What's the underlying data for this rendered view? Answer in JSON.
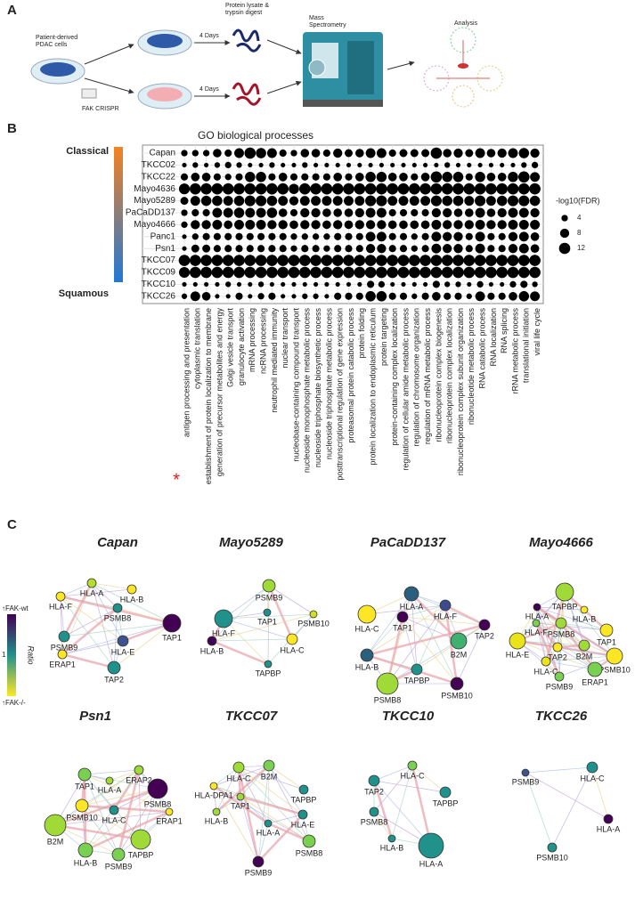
{
  "panel_a": {
    "label": "A",
    "source": [
      "Patient-derived",
      "PDAC cells"
    ],
    "days_top": "4 Days",
    "days_bottom": "4 Days",
    "crispr": "FAK CRISPR",
    "digest": [
      "Protein lysate &",
      "trypsin digest"
    ],
    "ms": [
      "Mass",
      "Spectrometry"
    ],
    "analysis": "Analysis"
  },
  "chart_data": {
    "type": "dot_matrix",
    "panel_label": "B",
    "title": "GO biological processes",
    "categories": [
      "antigen processing and presentation",
      "cytoplasmic translation",
      "establishment of protein localization to membrane",
      "generation of precursor metabolites and energy",
      "Golgi vesicle transport",
      "granulocyte activation",
      "mRNA processing",
      "ncRNA processing",
      "neutrophil mediated immunity",
      "nuclear transport",
      "nucleobase-containing compound transport",
      "nucleoside monophosphate metabolic process",
      "nucleoside triphosphate biosynthetic process",
      "nucleoside triphosphate metabolic process",
      "posttranscriptional regulation of gene expression",
      "proteasomal protein catabolic process",
      "protein folding",
      "protein localization to endoplasmic reticulum",
      "protein targeting",
      "protein-containing complex localization",
      "regulation of cellular amide metabolic process",
      "regulation of chromosome organization",
      "regulation of mRNA metabolic process",
      "ribonucleoprotein complex biogenesis",
      "ribonucleoprotein complex localization",
      "ribonucleoprotein complex subunit organization",
      "ribonucleotide metabolic process",
      "RNA catabolic process",
      "RNA localization",
      "RNA splicing",
      "rRNA metabolic process",
      "translational initiation",
      "viral life cycle"
    ],
    "rows": [
      "Capan",
      "TKCC02",
      "TKCC22",
      "Mayo4636",
      "Mayo5289",
      "PaCaDD137",
      "Mayo4666",
      "Panc1",
      "Psn1",
      "TKCC07",
      "TKCC09",
      "TKCC10",
      "TKCC26"
    ],
    "values": [
      [
        4,
        4,
        4,
        7,
        5,
        9,
        12,
        10,
        9,
        5,
        4,
        7,
        7,
        5,
        8,
        6,
        7,
        9,
        9,
        5,
        6,
        6,
        6,
        12,
        7,
        8,
        6,
        9,
        7,
        8,
        9,
        10,
        8
      ],
      [
        2,
        3,
        2,
        3,
        4,
        3,
        2,
        2,
        3,
        2,
        2,
        3,
        2,
        2,
        2,
        2,
        2,
        2,
        2,
        2,
        2,
        2,
        2,
        2,
        3,
        2,
        2,
        2,
        2,
        2,
        2,
        3,
        4
      ],
      [
        5,
        7,
        7,
        5,
        4,
        5,
        10,
        10,
        5,
        7,
        5,
        5,
        5,
        5,
        7,
        5,
        7,
        10,
        10,
        7,
        7,
        5,
        7,
        12,
        10,
        10,
        5,
        10,
        7,
        7,
        10,
        12,
        9
      ],
      [
        11,
        12,
        12,
        12,
        12,
        12,
        12,
        12,
        12,
        12,
        10,
        12,
        12,
        12,
        12,
        12,
        12,
        12,
        12,
        12,
        12,
        12,
        12,
        12,
        12,
        12,
        12,
        12,
        12,
        12,
        12,
        12,
        12
      ],
      [
        6,
        9,
        10,
        10,
        9,
        10,
        11,
        11,
        10,
        9,
        8,
        9,
        9,
        9,
        9,
        9,
        9,
        11,
        11,
        9,
        9,
        9,
        9,
        11,
        10,
        10,
        9,
        11,
        9,
        10,
        11,
        11,
        10
      ],
      [
        4,
        5,
        5,
        9,
        9,
        10,
        9,
        9,
        10,
        7,
        5,
        8,
        8,
        7,
        7,
        7,
        8,
        9,
        9,
        5,
        5,
        5,
        5,
        8,
        8,
        7,
        7,
        9,
        7,
        8,
        9,
        9,
        8
      ],
      [
        4,
        8,
        8,
        9,
        7,
        9,
        9,
        9,
        8,
        8,
        7,
        8,
        8,
        7,
        8,
        7,
        8,
        8,
        8,
        7,
        7,
        7,
        7,
        9,
        8,
        8,
        8,
        9,
        8,
        8,
        9,
        9,
        9
      ],
      [
        2,
        4,
        5,
        5,
        5,
        5,
        5,
        5,
        5,
        5,
        4,
        4,
        4,
        4,
        5,
        5,
        5,
        9,
        9,
        5,
        5,
        4,
        5,
        9,
        8,
        8,
        5,
        9,
        5,
        5,
        8,
        9,
        7
      ],
      [
        2,
        6,
        6,
        5,
        5,
        5,
        5,
        5,
        5,
        5,
        4,
        5,
        5,
        4,
        5,
        5,
        5,
        8,
        8,
        5,
        5,
        4,
        5,
        9,
        8,
        8,
        5,
        9,
        5,
        5,
        8,
        9,
        7
      ],
      [
        12,
        12,
        12,
        12,
        12,
        12,
        12,
        12,
        12,
        12,
        12,
        12,
        12,
        12,
        12,
        12,
        12,
        12,
        12,
        12,
        12,
        12,
        12,
        12,
        12,
        12,
        12,
        12,
        12,
        12,
        12,
        12,
        12
      ],
      [
        11,
        12,
        12,
        12,
        12,
        12,
        12,
        12,
        12,
        12,
        12,
        12,
        12,
        12,
        12,
        12,
        12,
        12,
        12,
        12,
        12,
        12,
        12,
        12,
        12,
        12,
        12,
        12,
        12,
        12,
        12,
        12,
        12
      ],
      [
        2,
        2,
        2,
        2,
        3,
        2,
        2,
        3,
        2,
        2,
        2,
        2,
        2,
        2,
        2,
        2,
        2,
        5,
        4,
        2,
        2,
        2,
        2,
        5,
        3,
        3,
        2,
        4,
        2,
        2,
        4,
        5,
        3
      ],
      [
        3,
        9,
        7,
        2,
        2,
        5,
        2,
        4,
        5,
        2,
        2,
        3,
        3,
        2,
        5,
        5,
        5,
        10,
        10,
        5,
        5,
        3,
        5,
        7,
        5,
        5,
        3,
        9,
        5,
        5,
        7,
        10,
        9
      ]
    ],
    "color": "#000000",
    "marker": "*",
    "marker_color": "#e41a1c",
    "size_legend": {
      "title": "-log10(FDR)",
      "values": [
        4,
        8,
        12
      ]
    },
    "gradient": {
      "top": "Classical",
      "bottom": "Squamous",
      "colors": [
        "#f5821f",
        "#1f78d6"
      ]
    }
  },
  "panel_c": {
    "label": "C",
    "colorbar": {
      "title": "Ratio",
      "top": "↑FAK-wt",
      "mid": "1",
      "bottom": "↑FAK-/-",
      "colors": [
        "#440154",
        "#21918c",
        "#fde725"
      ]
    },
    "networks": [
      {
        "title": "Capan",
        "nodes": [
          {
            "label": "HLA-A",
            "color": "#b5de2b"
          },
          {
            "label": "HLA-F",
            "color": "#fde725"
          },
          {
            "label": "HLA-B",
            "color": "#fde725"
          },
          {
            "label": "PSMB8",
            "color": "#21918c"
          },
          {
            "label": "TAP1",
            "color": "#440154"
          },
          {
            "label": "PSMB9",
            "color": "#21918c"
          },
          {
            "label": "HLA-E",
            "color": "#3b528b"
          },
          {
            "label": "ERAP1",
            "color": "#fde725"
          },
          {
            "label": "TAP2",
            "color": "#21918c"
          }
        ]
      },
      {
        "title": "Mayo5289",
        "nodes": [
          {
            "label": "PSMB9",
            "color": "#a0da39"
          },
          {
            "label": "HLA-F",
            "color": "#21918c"
          },
          {
            "label": "TAP1",
            "color": "#21918c"
          },
          {
            "label": "PSMB10",
            "color": "#d0e11c"
          },
          {
            "label": "HLA-B",
            "color": "#440154"
          },
          {
            "label": "HLA-C",
            "color": "#fde725"
          },
          {
            "label": "TAPBP",
            "color": "#21918c"
          }
        ]
      },
      {
        "title": "PaCaDD137",
        "nodes": [
          {
            "label": "HLA-A",
            "color": "#2c5f7e"
          },
          {
            "label": "HLA-F",
            "color": "#3b4b8b"
          },
          {
            "label": "HLA-C",
            "color": "#fde725"
          },
          {
            "label": "TAP1",
            "color": "#440154"
          },
          {
            "label": "TAP2",
            "color": "#440154"
          },
          {
            "label": "B2M",
            "color": "#3fb070"
          },
          {
            "label": "HLA-B",
            "color": "#2c5f7e"
          },
          {
            "label": "PSMB8",
            "color": "#a0da39"
          },
          {
            "label": "TAPBP",
            "color": "#21918c"
          },
          {
            "label": "PSMB10",
            "color": "#440154"
          }
        ]
      },
      {
        "title": "Mayo4666",
        "nodes": [
          {
            "label": "TAPBP",
            "color": "#a0da39"
          },
          {
            "label": "HLA-A",
            "color": "#440154"
          },
          {
            "label": "HLA-B",
            "color": "#fde725"
          },
          {
            "label": "HLA-F",
            "color": "#7ad151"
          },
          {
            "label": "PSMB8",
            "color": "#a0da39"
          },
          {
            "label": "TAP1",
            "color": "#fde725"
          },
          {
            "label": "HLA-E",
            "color": "#e8e419"
          },
          {
            "label": "TAP2",
            "color": "#fde725"
          },
          {
            "label": "B2M",
            "color": "#a0da39"
          },
          {
            "label": "PSMB10",
            "color": "#fde725"
          },
          {
            "label": "HLA-C",
            "color": "#e8e419"
          },
          {
            "label": "ERAP1",
            "color": "#7ad151"
          },
          {
            "label": "PSMB9",
            "color": "#7ad151"
          }
        ]
      },
      {
        "title": "Psn1",
        "nodes": [
          {
            "label": "ERAP2",
            "color": "#a0da39"
          },
          {
            "label": "TAP1",
            "color": "#7ad151"
          },
          {
            "label": "HLA-A",
            "color": "#a0da39"
          },
          {
            "label": "PSMB8",
            "color": "#440154"
          },
          {
            "label": "PSMB10",
            "color": "#fde725"
          },
          {
            "label": "HLA-C",
            "color": "#21918c"
          },
          {
            "label": "ERAP1",
            "color": "#fde725"
          },
          {
            "label": "B2M",
            "color": "#a0da39"
          },
          {
            "label": "TAPBP",
            "color": "#a0da39"
          },
          {
            "label": "HLA-B",
            "color": "#7ad151"
          },
          {
            "label": "PSMB9",
            "color": "#7ad151"
          }
        ]
      },
      {
        "title": "TKCC07",
        "nodes": [
          {
            "label": "B2M",
            "color": "#7ad151"
          },
          {
            "label": "HLA-C",
            "color": "#a0da39"
          },
          {
            "label": "TAPBP",
            "color": "#21918c"
          },
          {
            "label": "HLA-DPA1",
            "color": "#fde725"
          },
          {
            "label": "TAP1",
            "color": "#a0da39"
          },
          {
            "label": "HLA-B",
            "color": "#a0da39"
          },
          {
            "label": "HLA-E",
            "color": "#21918c"
          },
          {
            "label": "HLA-A",
            "color": "#21918c"
          },
          {
            "label": "PSMB8",
            "color": "#7ad151"
          },
          {
            "label": "PSMB9",
            "color": "#440154"
          }
        ]
      },
      {
        "title": "TKCC10",
        "nodes": [
          {
            "label": "HLA-C",
            "color": "#7ad151"
          },
          {
            "label": "TAP2",
            "color": "#21918c"
          },
          {
            "label": "TAPBP",
            "color": "#21918c"
          },
          {
            "label": "PSMB8",
            "color": "#21918c"
          },
          {
            "label": "HLA-B",
            "color": "#21918c"
          },
          {
            "label": "HLA-A",
            "color": "#21918c"
          }
        ]
      },
      {
        "title": "TKCC26",
        "nodes": [
          {
            "label": "HLA-C",
            "color": "#21918c"
          },
          {
            "label": "PSMB9",
            "color": "#3b528b"
          },
          {
            "label": "HLA-A",
            "color": "#440154"
          },
          {
            "label": "PSMB10",
            "color": "#21918c"
          }
        ]
      }
    ]
  }
}
